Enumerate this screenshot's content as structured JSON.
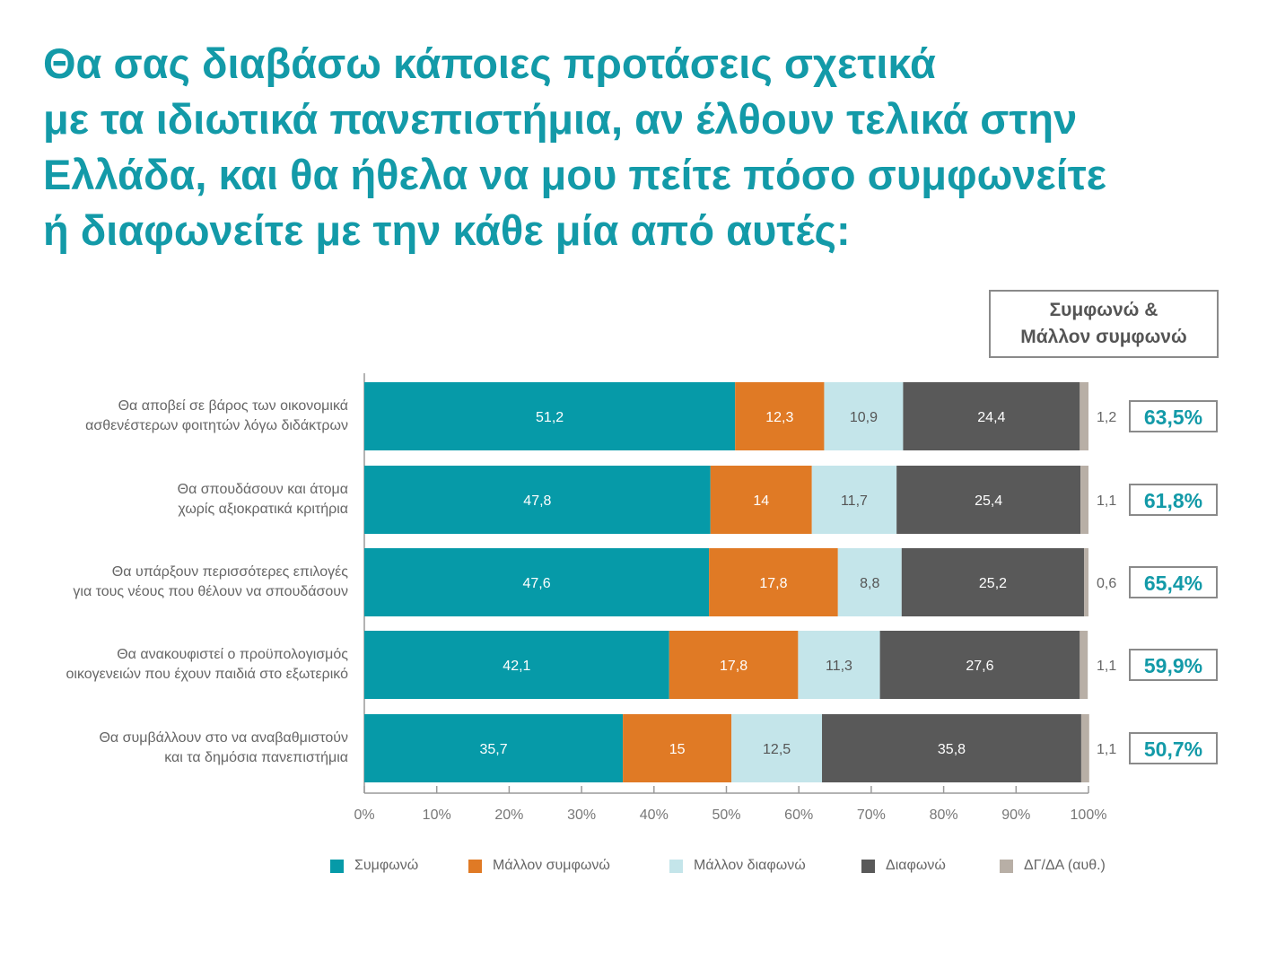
{
  "title_lines": [
    "Θα σας διαβάσω κάποιες προτάσεις σχετικά",
    "με τα ιδιωτικά πανεπιστήμια, αν έλθουν τελικά στην",
    "Ελλάδα, και θα ήθελα να μου πείτε πόσο συμφωνείτε",
    "ή διαφωνείτε με την κάθε μία από αυτές:"
  ],
  "summary_header": [
    "Συμφωνώ &",
    "Μάλλον συμφωνώ"
  ],
  "colors": {
    "title": "#139aa8",
    "agree": "#069aa8",
    "rather_agree": "#e07a25",
    "rather_disagree": "#c4e5ea",
    "disagree": "#595959",
    "dk_na": "#b8afa6",
    "summary_value": "#139aa8"
  },
  "chart_data": {
    "type": "bar",
    "orientation": "horizontal",
    "stacked": true,
    "categories": [
      [
        "Θα αποβεί σε βάρος των οικονομικά",
        "ασθενέστερων φοιτητών λόγω διδάκτρων"
      ],
      [
        "Θα σπουδάσουν και άτομα",
        "χωρίς αξιοκρατικά κριτήρια"
      ],
      [
        "Θα υπάρξουν περισσότερες επιλογές",
        "για τους νέους που θέλουν να σπουδάσουν"
      ],
      [
        "Θα ανακουφιστεί ο προϋπολογισμός",
        "οικογενειών που έχουν παιδιά στο εξωτερικό"
      ],
      [
        "Θα συμβάλλουν στο να αναβαθμιστούν",
        "και τα δημόσια πανεπιστήμια"
      ]
    ],
    "series": [
      {
        "name": "Συμφωνώ",
        "values": [
          51.2,
          47.8,
          47.6,
          42.1,
          35.7
        ],
        "labels": [
          "51,2",
          "47,8",
          "47,6",
          "42,1",
          "35,7"
        ]
      },
      {
        "name": "Μάλλον συμφωνώ",
        "values": [
          12.3,
          14,
          17.8,
          17.8,
          15
        ],
        "labels": [
          "12,3",
          "14",
          "17,8",
          "17,8",
          "15"
        ]
      },
      {
        "name": "Μάλλον διαφωνώ",
        "values": [
          10.9,
          11.7,
          8.8,
          11.3,
          12.5
        ],
        "labels": [
          "10,9",
          "11,7",
          "8,8",
          "11,3",
          "12,5"
        ]
      },
      {
        "name": "Διαφωνώ",
        "values": [
          24.4,
          25.4,
          25.2,
          27.6,
          35.8
        ],
        "labels": [
          "24,4",
          "25,4",
          "25,2",
          "27,6",
          "35,8"
        ]
      },
      {
        "name": "ΔΓ/ΔΑ (αυθ.)",
        "values": [
          1.2,
          1.1,
          0.6,
          1.1,
          1.1
        ],
        "labels": [
          "1,2",
          "1,1",
          "0,6",
          "1,1",
          "1,1"
        ]
      }
    ],
    "summary_values": [
      "63,5%",
      "61,8%",
      "65,4%",
      "59,9%",
      "50,7%"
    ],
    "x_ticks": [
      "0%",
      "10%",
      "20%",
      "30%",
      "40%",
      "50%",
      "60%",
      "70%",
      "80%",
      "90%",
      "100%"
    ],
    "xlim": [
      0,
      100
    ],
    "grid": false,
    "legend_position": "bottom"
  }
}
